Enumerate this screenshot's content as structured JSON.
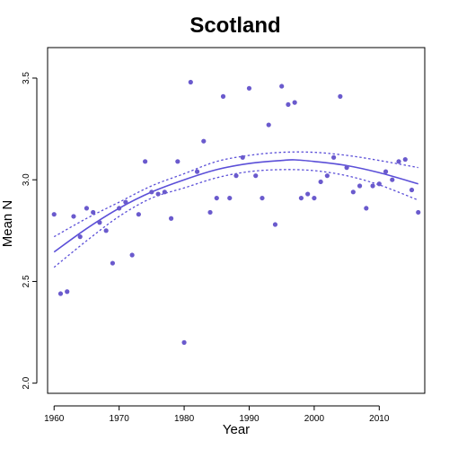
{
  "chart_data": {
    "type": "scatter",
    "title": "Scotland",
    "xlabel": "Year",
    "ylabel": "Mean N",
    "xlim": [
      1959,
      2017
    ],
    "ylim": [
      1.95,
      3.65
    ],
    "xticks": [
      1960,
      1970,
      1980,
      1990,
      2000,
      2010
    ],
    "yticks": [
      2.0,
      2.5,
      3.0,
      3.5
    ],
    "ytick_labels": [
      "2.0",
      "2.5",
      "3.0",
      "3.5"
    ],
    "grid": false,
    "colors": {
      "points": "#6a5acd",
      "fit": "#5b4fd8"
    },
    "series": [
      {
        "type": "scatter",
        "x": [
          1960,
          1961,
          1962,
          1963,
          1964,
          1965,
          1966,
          1967,
          1968,
          1969,
          1970,
          1971,
          1972,
          1973,
          1974,
          1975,
          1976,
          1977,
          1978,
          1979,
          1980,
          1981,
          1982,
          1983,
          1984,
          1985,
          1986,
          1987,
          1988,
          1989,
          1990,
          1991,
          1992,
          1993,
          1994,
          1995,
          1996,
          1997,
          1998,
          1999,
          2000,
          2001,
          2002,
          2003,
          2004,
          2005,
          2006,
          2007,
          2008,
          2009,
          2010,
          2011,
          2012,
          2013,
          2014,
          2015,
          2016
        ],
        "y": [
          2.83,
          2.44,
          2.45,
          2.82,
          2.72,
          2.86,
          2.84,
          2.79,
          2.75,
          2.59,
          2.86,
          2.89,
          2.63,
          2.83,
          3.09,
          2.94,
          2.93,
          2.94,
          2.81,
          3.09,
          2.2,
          3.48,
          3.04,
          3.19,
          2.84,
          2.91,
          3.41,
          2.91,
          3.02,
          3.11,
          3.45,
          3.02,
          2.91,
          3.27,
          2.78,
          3.46,
          3.37,
          3.38,
          2.91,
          2.93,
          2.91,
          2.99,
          3.02,
          3.11,
          3.41,
          3.06,
          2.94,
          2.97,
          2.86,
          2.97,
          2.98,
          3.04,
          3.0,
          3.09,
          3.1,
          2.95,
          2.84
        ]
      },
      {
        "type": "line",
        "style": "solid",
        "x": [
          1960,
          1965,
          1970,
          1975,
          1980,
          1985,
          1990,
          1995,
          1997,
          2000,
          2005,
          2010,
          2016
        ],
        "y": [
          2.645,
          2.76,
          2.86,
          2.94,
          3.0,
          3.05,
          3.08,
          3.095,
          3.098,
          3.09,
          3.07,
          3.035,
          2.98
        ]
      },
      {
        "type": "line",
        "style": "dotted",
        "x": [
          1960,
          1965,
          1970,
          1975,
          1980,
          1985,
          1990,
          1995,
          2000,
          2005,
          2010,
          2016
        ],
        "y": [
          2.72,
          2.81,
          2.89,
          2.97,
          3.03,
          3.09,
          3.12,
          3.135,
          3.135,
          3.12,
          3.095,
          3.06
        ]
      },
      {
        "type": "line",
        "style": "dotted",
        "x": [
          1960,
          1965,
          1970,
          1975,
          1980,
          1985,
          1990,
          1995,
          2000,
          2005,
          2010,
          2016
        ],
        "y": [
          2.57,
          2.7,
          2.82,
          2.91,
          2.96,
          3.01,
          3.04,
          3.05,
          3.045,
          3.02,
          2.975,
          2.9
        ]
      }
    ]
  }
}
